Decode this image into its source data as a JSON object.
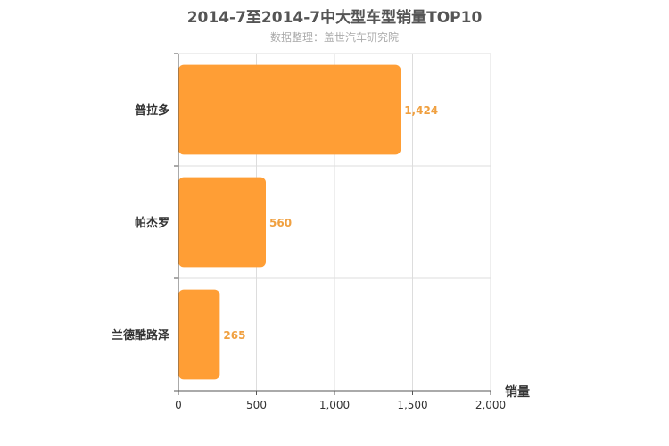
{
  "chart_data": {
    "type": "bar",
    "orientation": "horizontal",
    "title": "2014-7至2014-7中大型车型销量TOP10",
    "subtitle": "数据整理：盖世汽车研究院",
    "categories": [
      "普拉多",
      "帕杰罗",
      "兰德酷路泽"
    ],
    "values": [
      1424,
      560,
      265
    ],
    "value_labels": [
      "1,424",
      "560",
      "265"
    ],
    "xlabel": "销量",
    "xlim": [
      0,
      2000
    ],
    "xticks": [
      0,
      500,
      1000,
      1500,
      2000
    ],
    "xtick_labels": [
      "0",
      "500",
      "1,000",
      "1,500",
      "2,000"
    ],
    "grid": true,
    "colors": {
      "bar": "#ff9e35",
      "label": "#f0a040",
      "grid": "#dddddd",
      "axis": "#555555"
    }
  }
}
